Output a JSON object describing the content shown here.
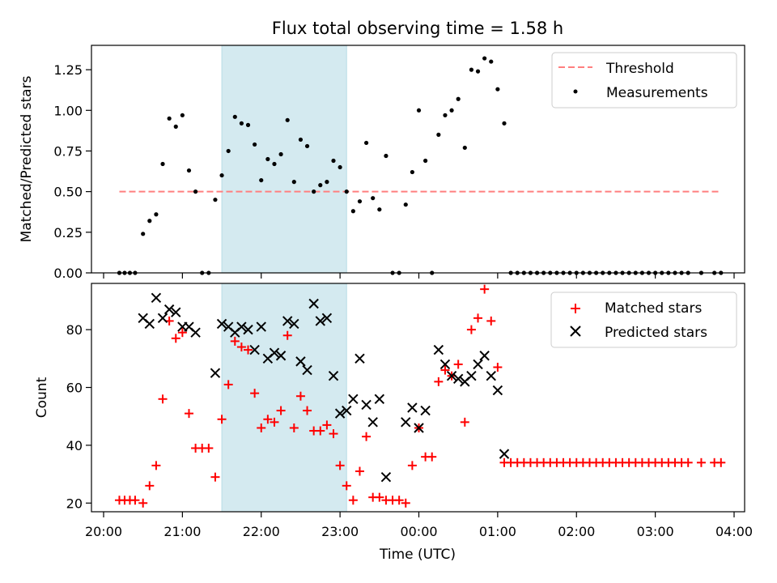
{
  "figure": {
    "title": "Flux total observing time = 1.58 h",
    "xlabel": "Time (UTC)",
    "x_ticks": [
      "20:00",
      "21:00",
      "22:00",
      "23:00",
      "00:00",
      "01:00",
      "02:00",
      "03:00",
      "04:00"
    ]
  },
  "chart_data": [
    {
      "type": "scatter",
      "panel": "top",
      "ylabel": "Matched/Predicted stars",
      "ylim": [
        0,
        1.4
      ],
      "y_ticks": [
        "0.00",
        "0.25",
        "0.50",
        "0.75",
        "1.00",
        "1.25"
      ],
      "xlim": [
        "20:00",
        "04:00"
      ],
      "shaded_interval": {
        "start": "21:30",
        "end": "23:05",
        "color": "#d4eaf0"
      },
      "legend": {
        "placement": "top-right",
        "entries": [
          "Threshold",
          "Measurements"
        ]
      },
      "threshold": {
        "name": "Threshold",
        "y": 0.5,
        "x_start": "20:12",
        "x_end": "03:50",
        "color": "#ff7f7f",
        "style": "dashed"
      },
      "series": [
        {
          "name": "Measurements",
          "color": "#000000",
          "marker": "dot",
          "points": [
            [
              "20:12",
              0
            ],
            [
              "20:16",
              0
            ],
            [
              "20:20",
              0
            ],
            [
              "20:24",
              0
            ],
            [
              "20:30",
              0.24
            ],
            [
              "20:35",
              0.32
            ],
            [
              "20:40",
              0.36
            ],
            [
              "20:45",
              0.67
            ],
            [
              "20:50",
              0.95
            ],
            [
              "20:55",
              0.9
            ],
            [
              "21:00",
              0.97
            ],
            [
              "21:05",
              0.63
            ],
            [
              "21:10",
              0.5
            ],
            [
              "21:15",
              0
            ],
            [
              "21:20",
              0
            ],
            [
              "21:25",
              0.45
            ],
            [
              "21:30",
              0.6
            ],
            [
              "21:35",
              0.75
            ],
            [
              "21:40",
              0.96
            ],
            [
              "21:45",
              0.92
            ],
            [
              "21:50",
              0.91
            ],
            [
              "21:55",
              0.79
            ],
            [
              "22:00",
              0.57
            ],
            [
              "22:05",
              0.7
            ],
            [
              "22:10",
              0.67
            ],
            [
              "22:15",
              0.73
            ],
            [
              "22:20",
              0.94
            ],
            [
              "22:25",
              0.56
            ],
            [
              "22:30",
              0.82
            ],
            [
              "22:35",
              0.78
            ],
            [
              "22:40",
              0.5
            ],
            [
              "22:45",
              0.54
            ],
            [
              "22:50",
              0.56
            ],
            [
              "22:55",
              0.69
            ],
            [
              "23:00",
              0.65
            ],
            [
              "23:05",
              0.5
            ],
            [
              "23:10",
              0.38
            ],
            [
              "23:15",
              0.44
            ],
            [
              "23:20",
              0.8
            ],
            [
              "23:25",
              0.46
            ],
            [
              "23:30",
              0.39
            ],
            [
              "23:35",
              0.72
            ],
            [
              "23:40",
              0
            ],
            [
              "23:45",
              0
            ],
            [
              "23:50",
              0.42
            ],
            [
              "23:55",
              0.62
            ],
            [
              "00:00",
              1.0
            ],
            [
              "00:05",
              0.69
            ],
            [
              "00:10",
              0
            ],
            [
              "00:15",
              0.85
            ],
            [
              "00:20",
              0.97
            ],
            [
              "00:25",
              1.0
            ],
            [
              "00:30",
              1.07
            ],
            [
              "00:35",
              0.77
            ],
            [
              "00:40",
              1.25
            ],
            [
              "00:45",
              1.24
            ],
            [
              "00:50",
              1.32
            ],
            [
              "00:55",
              1.3
            ],
            [
              "01:00",
              1.13
            ],
            [
              "01:05",
              0.92
            ],
            [
              "01:10",
              0
            ],
            [
              "01:15",
              0
            ],
            [
              "01:20",
              0
            ],
            [
              "01:25",
              0
            ],
            [
              "01:30",
              0
            ],
            [
              "01:35",
              0
            ],
            [
              "01:40",
              0
            ],
            [
              "01:45",
              0
            ],
            [
              "01:50",
              0
            ],
            [
              "01:55",
              0
            ],
            [
              "02:00",
              0
            ],
            [
              "02:05",
              0
            ],
            [
              "02:10",
              0
            ],
            [
              "02:15",
              0
            ],
            [
              "02:20",
              0
            ],
            [
              "02:25",
              0
            ],
            [
              "02:30",
              0
            ],
            [
              "02:35",
              0
            ],
            [
              "02:40",
              0
            ],
            [
              "02:45",
              0
            ],
            [
              "02:50",
              0
            ],
            [
              "02:55",
              0
            ],
            [
              "03:00",
              0
            ],
            [
              "03:05",
              0
            ],
            [
              "03:10",
              0
            ],
            [
              "03:15",
              0
            ],
            [
              "03:20",
              0
            ],
            [
              "03:25",
              0
            ],
            [
              "03:35",
              0
            ],
            [
              "03:45",
              0
            ],
            [
              "03:50",
              0
            ]
          ]
        }
      ]
    },
    {
      "type": "scatter",
      "panel": "bottom",
      "ylabel": "Count",
      "ylim": [
        17,
        96
      ],
      "y_ticks": [
        "20",
        "40",
        "60",
        "80"
      ],
      "xlim": [
        "20:00",
        "04:00"
      ],
      "shaded_interval": {
        "start": "21:30",
        "end": "23:05",
        "color": "#d4eaf0"
      },
      "legend": {
        "placement": "top-right",
        "entries": [
          "Matched stars",
          "Predicted stars"
        ]
      },
      "series": [
        {
          "name": "Matched stars",
          "color": "#ff0000",
          "marker": "plus",
          "points": [
            [
              "20:12",
              21
            ],
            [
              "20:16",
              21
            ],
            [
              "20:20",
              21
            ],
            [
              "20:24",
              21
            ],
            [
              "20:30",
              20
            ],
            [
              "20:35",
              26
            ],
            [
              "20:40",
              33
            ],
            [
              "20:45",
              56
            ],
            [
              "20:50",
              83
            ],
            [
              "20:55",
              77
            ],
            [
              "21:00",
              79
            ],
            [
              "21:05",
              51
            ],
            [
              "21:10",
              39
            ],
            [
              "21:15",
              39
            ],
            [
              "21:20",
              39
            ],
            [
              "21:25",
              29
            ],
            [
              "21:30",
              49
            ],
            [
              "21:35",
              61
            ],
            [
              "21:40",
              76
            ],
            [
              "21:45",
              74
            ],
            [
              "21:50",
              73
            ],
            [
              "21:55",
              58
            ],
            [
              "22:00",
              46
            ],
            [
              "22:05",
              49
            ],
            [
              "22:10",
              48
            ],
            [
              "22:15",
              52
            ],
            [
              "22:20",
              78
            ],
            [
              "22:25",
              46
            ],
            [
              "22:30",
              57
            ],
            [
              "22:35",
              52
            ],
            [
              "22:40",
              45
            ],
            [
              "22:45",
              45
            ],
            [
              "22:50",
              47
            ],
            [
              "22:55",
              44
            ],
            [
              "23:00",
              33
            ],
            [
              "23:05",
              26
            ],
            [
              "23:10",
              21
            ],
            [
              "23:15",
              31
            ],
            [
              "23:20",
              43
            ],
            [
              "23:25",
              22
            ],
            [
              "23:30",
              22
            ],
            [
              "23:35",
              21
            ],
            [
              "23:40",
              21
            ],
            [
              "23:45",
              21
            ],
            [
              "23:50",
              20
            ],
            [
              "23:55",
              33
            ],
            [
              "00:00",
              46
            ],
            [
              "00:05",
              36
            ],
            [
              "00:10",
              36
            ],
            [
              "00:15",
              62
            ],
            [
              "00:20",
              66
            ],
            [
              "00:25",
              64
            ],
            [
              "00:30",
              68
            ],
            [
              "00:35",
              48
            ],
            [
              "00:40",
              80
            ],
            [
              "00:45",
              84
            ],
            [
              "00:50",
              94
            ],
            [
              "00:55",
              83
            ],
            [
              "01:00",
              67
            ],
            [
              "01:05",
              34
            ],
            [
              "01:10",
              34
            ],
            [
              "01:15",
              34
            ],
            [
              "01:20",
              34
            ],
            [
              "01:25",
              34
            ],
            [
              "01:30",
              34
            ],
            [
              "01:35",
              34
            ],
            [
              "01:40",
              34
            ],
            [
              "01:45",
              34
            ],
            [
              "01:50",
              34
            ],
            [
              "01:55",
              34
            ],
            [
              "02:00",
              34
            ],
            [
              "02:05",
              34
            ],
            [
              "02:10",
              34
            ],
            [
              "02:15",
              34
            ],
            [
              "02:20",
              34
            ],
            [
              "02:25",
              34
            ],
            [
              "02:30",
              34
            ],
            [
              "02:35",
              34
            ],
            [
              "02:40",
              34
            ],
            [
              "02:45",
              34
            ],
            [
              "02:50",
              34
            ],
            [
              "02:55",
              34
            ],
            [
              "03:00",
              34
            ],
            [
              "03:05",
              34
            ],
            [
              "03:10",
              34
            ],
            [
              "03:15",
              34
            ],
            [
              "03:20",
              34
            ],
            [
              "03:25",
              34
            ],
            [
              "03:35",
              34
            ],
            [
              "03:45",
              34
            ],
            [
              "03:50",
              34
            ]
          ]
        },
        {
          "name": "Predicted stars",
          "color": "#000000",
          "marker": "x",
          "points": [
            [
              "20:30",
              84
            ],
            [
              "20:35",
              82
            ],
            [
              "20:40",
              91
            ],
            [
              "20:45",
              84
            ],
            [
              "20:50",
              87
            ],
            [
              "20:55",
              86
            ],
            [
              "21:00",
              81
            ],
            [
              "21:05",
              81
            ],
            [
              "21:10",
              79
            ],
            [
              "21:25",
              65
            ],
            [
              "21:30",
              82
            ],
            [
              "21:35",
              81
            ],
            [
              "21:40",
              79
            ],
            [
              "21:45",
              81
            ],
            [
              "21:50",
              80
            ],
            [
              "21:55",
              73
            ],
            [
              "22:00",
              81
            ],
            [
              "22:05",
              70
            ],
            [
              "22:10",
              72
            ],
            [
              "22:15",
              71
            ],
            [
              "22:20",
              83
            ],
            [
              "22:25",
              82
            ],
            [
              "22:30",
              69
            ],
            [
              "22:35",
              66
            ],
            [
              "22:40",
              89
            ],
            [
              "22:45",
              83
            ],
            [
              "22:50",
              84
            ],
            [
              "22:55",
              64
            ],
            [
              "23:00",
              51
            ],
            [
              "23:05",
              52
            ],
            [
              "23:10",
              56
            ],
            [
              "23:15",
              70
            ],
            [
              "23:20",
              54
            ],
            [
              "23:25",
              48
            ],
            [
              "23:30",
              56
            ],
            [
              "23:35",
              29
            ],
            [
              "23:50",
              48
            ],
            [
              "23:55",
              53
            ],
            [
              "00:00",
              46
            ],
            [
              "00:05",
              52
            ],
            [
              "00:15",
              73
            ],
            [
              "00:20",
              68
            ],
            [
              "00:25",
              64
            ],
            [
              "00:30",
              63
            ],
            [
              "00:35",
              62
            ],
            [
              "00:40",
              64
            ],
            [
              "00:45",
              68
            ],
            [
              "00:50",
              71
            ],
            [
              "00:55",
              64
            ],
            [
              "01:00",
              59
            ],
            [
              "01:05",
              37
            ]
          ]
        }
      ]
    }
  ]
}
